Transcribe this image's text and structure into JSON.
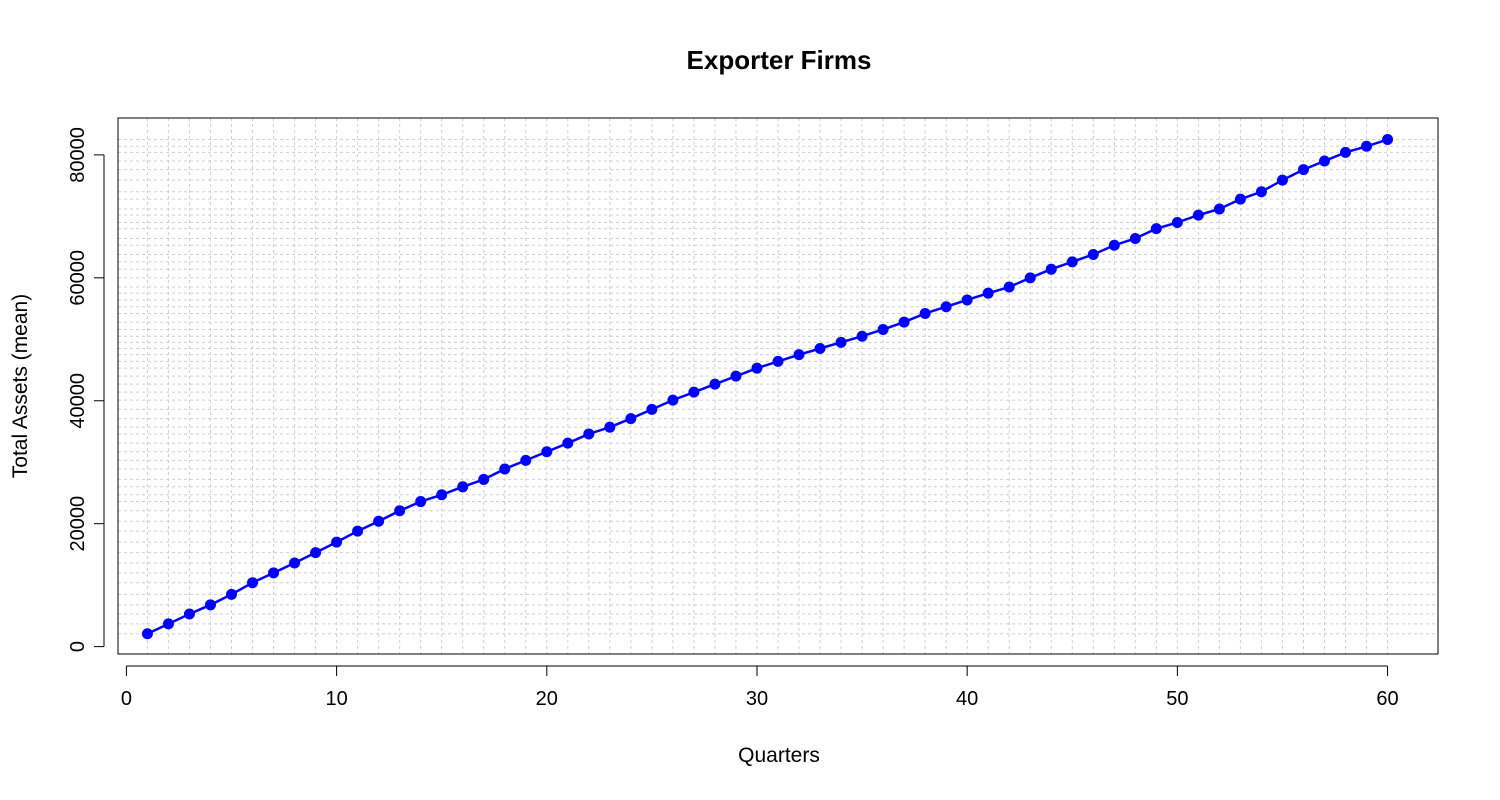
{
  "chart_data": {
    "type": "line",
    "title": "Exporter Firms",
    "xlabel": "Quarters",
    "ylabel": "Total Assets (mean)",
    "xlim": [
      -0.4,
      62.4
    ],
    "ylim": [
      -1200,
      86000
    ],
    "xticks": [
      0,
      10,
      20,
      30,
      40,
      50,
      60
    ],
    "yticks": [
      0,
      20000,
      40000,
      60000,
      80000
    ],
    "grid": true,
    "color": "#0000ff",
    "series": [
      {
        "x": [
          1,
          2,
          3,
          4,
          5,
          6,
          7,
          8,
          9,
          10,
          11,
          12,
          13,
          14,
          15,
          16,
          17,
          18,
          19,
          20,
          21,
          22,
          23,
          24,
          25,
          26,
          27,
          28,
          29,
          30,
          31,
          32,
          33,
          34,
          35,
          36,
          37,
          38,
          39,
          40,
          41,
          42,
          43,
          44,
          45,
          46,
          47,
          48,
          49,
          50,
          51,
          52,
          53,
          54,
          55,
          56,
          57,
          58,
          59,
          60
        ],
        "y": [
          2100,
          3700,
          5300,
          6800,
          8500,
          10400,
          12000,
          13600,
          15300,
          17000,
          18800,
          20400,
          22100,
          23600,
          24700,
          26000,
          27200,
          28900,
          30300,
          31700,
          33100,
          34600,
          35700,
          37100,
          38600,
          40100,
          41400,
          42700,
          44000,
          45300,
          46400,
          47500,
          48500,
          49500,
          50500,
          51600,
          52800,
          54200,
          55300,
          56400,
          57500,
          58500,
          60000,
          61400,
          62600,
          63800,
          65300,
          66400,
          68000,
          69000,
          70200,
          71200,
          72800,
          74000,
          75900,
          77600,
          79000,
          80400,
          81400,
          82500
        ]
      }
    ]
  }
}
